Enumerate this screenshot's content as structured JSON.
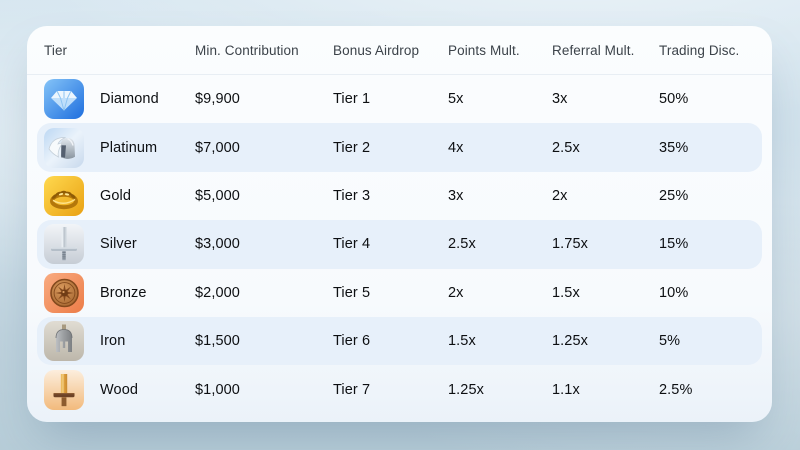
{
  "colors": {
    "sky_top": "#d6e6f0",
    "sky_bottom": "#b7cdd8",
    "card_background": "#fbfdfe",
    "row_stripe": "#e7f0fa",
    "header_text": "#3c434a",
    "cell_text": "#0d0f12"
  },
  "table": {
    "columns": [
      {
        "key": "tier",
        "label": "Tier"
      },
      {
        "key": "min_contribution",
        "label": "Min. Contribution"
      },
      {
        "key": "bonus_airdrop",
        "label": "Bonus Airdrop"
      },
      {
        "key": "points_mult",
        "label": "Points Mult."
      },
      {
        "key": "referral_mult",
        "label": "Referral Mult."
      },
      {
        "key": "trading_disc",
        "label": "Trading Disc."
      }
    ],
    "rows": [
      {
        "tier": "Diamond",
        "icon": "diamond-gem-icon",
        "icon_bg": "#2e7fe8",
        "min_contribution": "$9,900",
        "bonus_airdrop": "Tier 1",
        "points_mult": "5x",
        "referral_mult": "3x",
        "trading_disc": "50%",
        "striped": false
      },
      {
        "tier": "Platinum",
        "icon": "winged-helmet-icon",
        "icon_bg": "#d5e5f8",
        "min_contribution": "$7,000",
        "bonus_airdrop": "Tier 2",
        "points_mult": "4x",
        "referral_mult": "2.5x",
        "trading_disc": "35%",
        "striped": true
      },
      {
        "tier": "Gold",
        "icon": "laurel-wreath-icon",
        "icon_bg": "#f4bc2e",
        "min_contribution": "$5,000",
        "bonus_airdrop": "Tier 3",
        "points_mult": "3x",
        "referral_mult": "2x",
        "trading_disc": "25%",
        "striped": false
      },
      {
        "tier": "Silver",
        "icon": "silver-sword-icon",
        "icon_bg": "#dde3e9",
        "min_contribution": "$3,000",
        "bonus_airdrop": "Tier 4",
        "points_mult": "2.5x",
        "referral_mult": "1.75x",
        "trading_disc": "15%",
        "striped": true
      },
      {
        "tier": "Bronze",
        "icon": "bronze-shield-icon",
        "icon_bg": "#f29465",
        "min_contribution": "$2,000",
        "bonus_airdrop": "Tier 5",
        "points_mult": "2x",
        "referral_mult": "1.5x",
        "trading_disc": "10%",
        "striped": false
      },
      {
        "tier": "Iron",
        "icon": "iron-helmet-icon",
        "icon_bg": "#cfc9bf",
        "min_contribution": "$1,500",
        "bonus_airdrop": "Tier 6",
        "points_mult": "1.5x",
        "referral_mult": "1.25x",
        "trading_disc": "5%",
        "striped": true
      },
      {
        "tier": "Wood",
        "icon": "wooden-sword-icon",
        "icon_bg": "#f6d3a4",
        "min_contribution": "$1,000",
        "bonus_airdrop": "Tier 7",
        "points_mult": "1.25x",
        "referral_mult": "1.1x",
        "trading_disc": "2.5%",
        "striped": false
      }
    ]
  }
}
